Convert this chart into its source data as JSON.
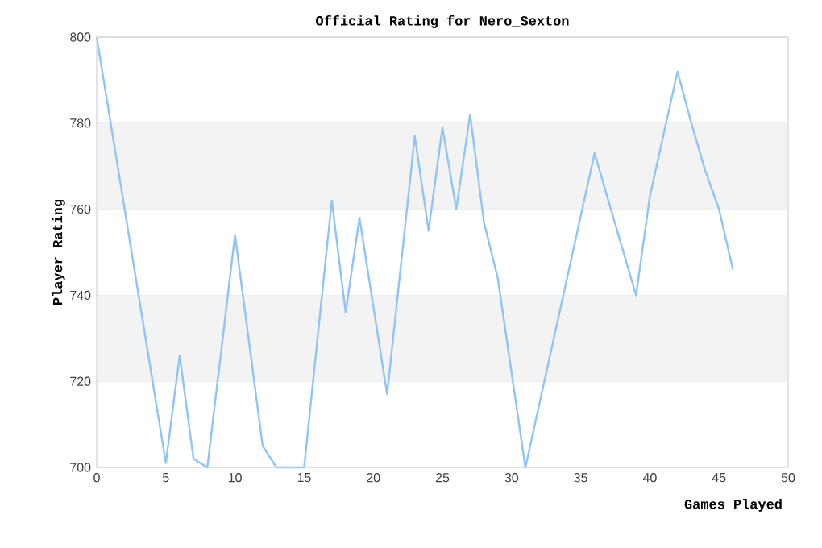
{
  "chart_data": {
    "type": "line",
    "title": "Official Rating for Nero_Sexton",
    "xlabel": "Games Played",
    "ylabel": "Player Rating",
    "x": [
      0,
      5,
      6,
      7,
      8,
      10,
      12,
      13,
      15,
      17,
      18,
      19,
      21,
      23,
      24,
      25,
      26,
      27,
      28,
      29,
      31,
      36,
      39,
      40,
      42,
      43,
      44,
      45,
      46
    ],
    "series": [
      {
        "color": "#90c4f4",
        "values": [
          800,
          701,
          726,
          702,
          700,
          754,
          705,
          700,
          700,
          762,
          736,
          758,
          717,
          777,
          755,
          779,
          760,
          782,
          757,
          744,
          700,
          773,
          740,
          763,
          792,
          780,
          769,
          760,
          746
        ]
      }
    ],
    "xlim": [
      0,
      50
    ],
    "xticks": [
      0,
      5,
      10,
      15,
      20,
      25,
      30,
      35,
      40,
      45,
      50
    ],
    "ylim": [
      700,
      800
    ],
    "yticks": [
      700,
      720,
      740,
      760,
      780,
      800
    ],
    "bands": [
      {
        "axis": "y",
        "from": 720,
        "to": 740,
        "color": "#f3f3f3"
      },
      {
        "axis": "y",
        "from": 760,
        "to": 780,
        "color": "#f3f3f3"
      }
    ],
    "grid": "y",
    "marker": "none",
    "line_style": "solid"
  }
}
